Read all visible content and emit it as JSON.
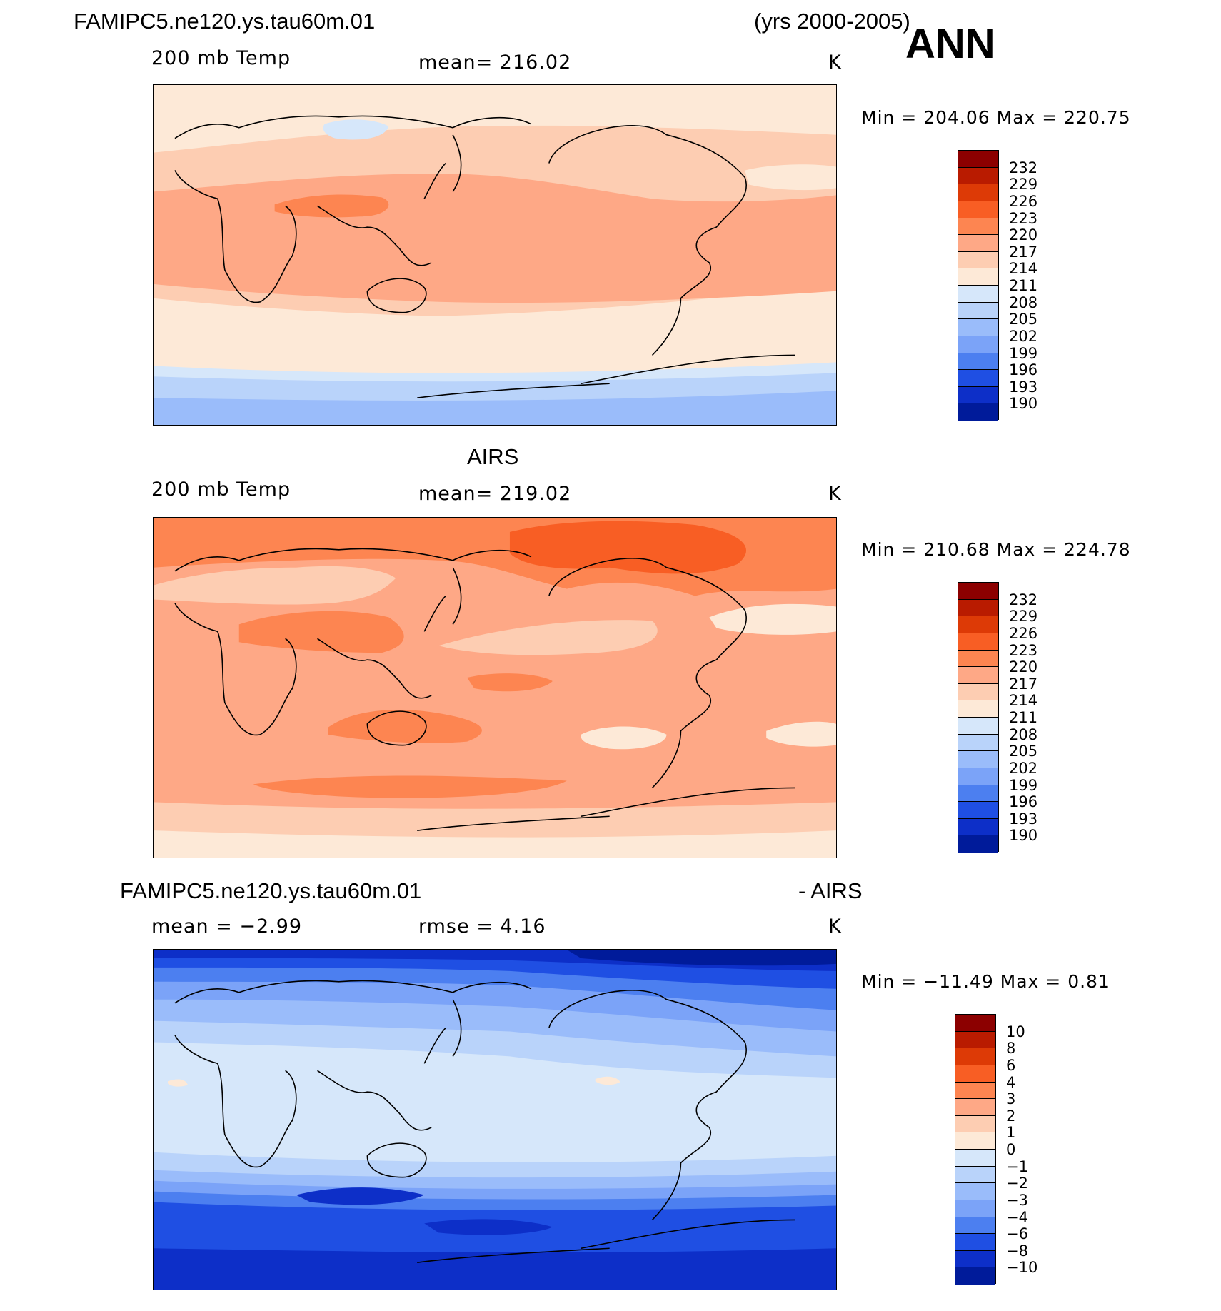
{
  "header": {
    "case_name": "FAMIPC5.ne120.ys.tau60m.01",
    "years": "(yrs 2000-2005)",
    "season": "ANN"
  },
  "panels": [
    {
      "title": "",
      "variable": "200 mb Temp",
      "mean_text": "mean=  216.02",
      "units": "K",
      "minmax_text": "Min  =  204.06  Max  =  220.75",
      "levels": [
        "232",
        "229",
        "226",
        "223",
        "220",
        "217",
        "214",
        "211",
        "208",
        "205",
        "202",
        "199",
        "196",
        "193",
        "190"
      ],
      "colors": [
        "#8c0000",
        "#b91b00",
        "#dd3a06",
        "#f85e24",
        "#fd8551",
        "#fea886",
        "#fdcdb2",
        "#fde9d7",
        "#d6e7fa",
        "#b9d3fa",
        "#9abcfa",
        "#7ba3f8",
        "#4c7ff0",
        "#1f4fe3",
        "#0d2fc8",
        "#001b9a"
      ],
      "field": "model"
    },
    {
      "title": "AIRS",
      "variable": "200 mb Temp",
      "mean_text": "mean=  219.02",
      "units": "K",
      "minmax_text": "Min  =  210.68  Max  =  224.78",
      "levels": [
        "232",
        "229",
        "226",
        "223",
        "220",
        "217",
        "214",
        "211",
        "208",
        "205",
        "202",
        "199",
        "196",
        "193",
        "190"
      ],
      "colors": [
        "#8c0000",
        "#b91b00",
        "#dd3a06",
        "#f85e24",
        "#fd8551",
        "#fea886",
        "#fdcdb2",
        "#fde9d7",
        "#d6e7fa",
        "#b9d3fa",
        "#9abcfa",
        "#7ba3f8",
        "#4c7ff0",
        "#1f4fe3",
        "#0d2fc8",
        "#001b9a"
      ],
      "field": "obs"
    },
    {
      "title_left": "FAMIPC5.ne120.ys.tau60m.01",
      "title_right": "- AIRS",
      "stat_left": "mean  =    −2.99",
      "stat_mid": "rmse  =     4.16",
      "units": "K",
      "minmax_text": "Min  =  −11.49  Max  =     0.81",
      "levels": [
        "10",
        "8",
        "6",
        "4",
        "3",
        "2",
        "1",
        "0",
        "−1",
        "−2",
        "−3",
        "−4",
        "−6",
        "−8",
        "−10"
      ],
      "colors": [
        "#8c0000",
        "#b91b00",
        "#dd3a06",
        "#f85e24",
        "#fd8551",
        "#fea886",
        "#fdcdb2",
        "#fde9d7",
        "#d6e7fa",
        "#b9d3fa",
        "#9abcfa",
        "#7ba3f8",
        "#4c7ff0",
        "#1f4fe3",
        "#0d2fc8",
        "#001b9a"
      ],
      "field": "diff"
    }
  ],
  "map_colors": {
    "c214_217": "#fdcdb2",
    "c211_214": "#fde9d7",
    "c217_220": "#fea886",
    "c220_223": "#fd8551",
    "c223_226": "#f85e24",
    "c208_211": "#d6e7fa",
    "c205_208": "#b9d3fa",
    "c202_205": "#9abcfa",
    "d_0_m1": "#d6e7fa",
    "d_m1_m2": "#b9d3fa",
    "d_m2_m3": "#9abcfa",
    "d_m3_m4": "#7ba3f8",
    "d_m4_m6": "#4c7ff0",
    "d_m6_m8": "#1f4fe3",
    "d_m8_m10": "#0d2fc8",
    "d_lt_m10": "#001b9a",
    "d_0_1": "#fde9d7"
  }
}
